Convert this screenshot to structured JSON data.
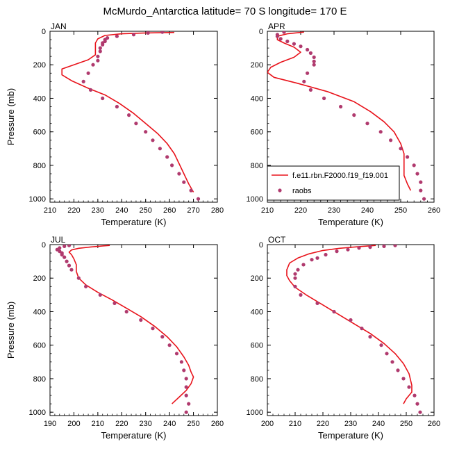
{
  "title": "McMurdo_Antarctica  latitude= 70 S longitude= 170 E",
  "colors": {
    "model": "#e8121a",
    "obs": "#b03a6e",
    "axis": "#000000"
  },
  "legend": {
    "model_label": "f.e11.rbn.F2000.f19_f19.001",
    "obs_label": "raobs"
  },
  "chart_data": [
    {
      "type": "scatter",
      "month": "JAN",
      "xlabel": "Temperature (K)",
      "ylabel": "Pressure (mb)",
      "xlim": [
        210,
        280
      ],
      "ylim": [
        0,
        1020
      ],
      "yreversed": true,
      "xticks": [
        210,
        220,
        230,
        240,
        250,
        260,
        270,
        280
      ],
      "yticks": [
        0,
        200,
        400,
        600,
        800,
        1000
      ],
      "series": [
        {
          "name": "f.e11.rbn.F2000.f19_f19.001",
          "kind": "line",
          "points": [
            [
              262,
              7
            ],
            [
              250,
              10
            ],
            [
              240,
              15
            ],
            [
              233,
              25
            ],
            [
              230,
              45
            ],
            [
              229,
              70
            ],
            [
              229,
              100
            ],
            [
              229,
              140
            ],
            [
              226,
              170
            ],
            [
              220,
              200
            ],
            [
              215,
              225
            ],
            [
              215,
              260
            ],
            [
              219,
              295
            ],
            [
              226,
              340
            ],
            [
              233,
              380
            ],
            [
              239,
              430
            ],
            [
              245,
              490
            ],
            [
              250,
              550
            ],
            [
              255,
              610
            ],
            [
              259,
              670
            ],
            [
              262,
              730
            ],
            [
              264,
              790
            ],
            [
              266,
              850
            ],
            [
              268,
              910
            ],
            [
              270,
              960
            ]
          ]
        },
        {
          "name": "raobs",
          "kind": "markers",
          "points": [
            [
              257,
              5
            ],
            [
              251,
              10
            ],
            [
              245,
              20
            ],
            [
              238,
              30
            ],
            [
              234,
              40
            ],
            [
              233,
              50
            ],
            [
              233,
              60
            ],
            [
              232,
              70
            ],
            [
              232,
              80
            ],
            [
              231,
              100
            ],
            [
              231,
              120
            ],
            [
              230,
              150
            ],
            [
              230,
              175
            ],
            [
              228,
              200
            ],
            [
              226,
              250
            ],
            [
              224,
              300
            ],
            [
              227,
              350
            ],
            [
              232,
              400
            ],
            [
              238,
              450
            ],
            [
              243,
              500
            ],
            [
              246,
              550
            ],
            [
              250,
              600
            ],
            [
              253,
              650
            ],
            [
              256,
              700
            ],
            [
              259,
              750
            ],
            [
              261,
              800
            ],
            [
              264,
              850
            ],
            [
              266,
              900
            ],
            [
              269,
              950
            ],
            [
              272,
              1000
            ]
          ]
        }
      ]
    },
    {
      "type": "scatter",
      "month": "APR",
      "xlabel": "Temperature (K)",
      "ylabel": "",
      "xlim": [
        210,
        260
      ],
      "ylim": [
        0,
        1020
      ],
      "yreversed": true,
      "xticks": [
        210,
        220,
        230,
        240,
        250,
        260
      ],
      "yticks": [
        0,
        200,
        400,
        600,
        800,
        1000
      ],
      "show_legend": true,
      "series": [
        {
          "name": "f.e11.rbn.F2000.f19_f19.001",
          "kind": "line",
          "points": [
            [
              221,
              5
            ],
            [
              216,
              15
            ],
            [
              213,
              30
            ],
            [
              213,
              50
            ],
            [
              215,
              70
            ],
            [
              218,
              95
            ],
            [
              220,
              125
            ],
            [
              218,
              155
            ],
            [
              214,
              185
            ],
            [
              211,
              215
            ],
            [
              210,
              245
            ],
            [
              212,
              275
            ],
            [
              219,
              310
            ],
            [
              228,
              360
            ],
            [
              236,
              420
            ],
            [
              241,
              480
            ],
            [
              245,
              540
            ],
            [
              248,
              600
            ],
            [
              250,
              670
            ],
            [
              251,
              730
            ],
            [
              251,
              800
            ],
            [
              251,
              860
            ],
            [
              252,
              910
            ],
            [
              253,
              950
            ]
          ]
        },
        {
          "name": "raobs",
          "kind": "markers",
          "points": [
            [
              215,
              5
            ],
            [
              213,
              20
            ],
            [
              213,
              30
            ],
            [
              214,
              45
            ],
            [
              216,
              60
            ],
            [
              218,
              75
            ],
            [
              220,
              90
            ],
            [
              222,
              110
            ],
            [
              223,
              130
            ],
            [
              224,
              155
            ],
            [
              224,
              180
            ],
            [
              224,
              200
            ],
            [
              222,
              250
            ],
            [
              221,
              300
            ],
            [
              223,
              350
            ],
            [
              227,
              400
            ],
            [
              232,
              450
            ],
            [
              236,
              500
            ],
            [
              240,
              550
            ],
            [
              244,
              600
            ],
            [
              247,
              650
            ],
            [
              250,
              700
            ],
            [
              252,
              750
            ],
            [
              254,
              800
            ],
            [
              255,
              850
            ],
            [
              256,
              900
            ],
            [
              256,
              950
            ],
            [
              257,
              1000
            ]
          ]
        }
      ]
    },
    {
      "type": "scatter",
      "month": "JUL",
      "xlabel": "Temperature (K)",
      "ylabel": "Pressure (mb)",
      "xlim": [
        190,
        260
      ],
      "ylim": [
        0,
        1020
      ],
      "yreversed": true,
      "xticks": [
        190,
        200,
        210,
        220,
        230,
        240,
        250,
        260
      ],
      "yticks": [
        0,
        200,
        400,
        600,
        800,
        1000
      ],
      "series": [
        {
          "name": "f.e11.rbn.F2000.f19_f19.001",
          "kind": "line",
          "points": [
            [
              215,
              5
            ],
            [
              212,
              8
            ],
            [
              207,
              14
            ],
            [
              202,
              22
            ],
            [
              199,
              32
            ],
            [
              198,
              45
            ],
            [
              199,
              60
            ],
            [
              200,
              85
            ],
            [
              201,
              120
            ],
            [
              201,
              160
            ],
            [
              202,
              200
            ],
            [
              205,
              240
            ],
            [
              210,
              285
            ],
            [
              216,
              330
            ],
            [
              222,
              380
            ],
            [
              228,
              430
            ],
            [
              234,
              490
            ],
            [
              239,
              550
            ],
            [
              243,
              610
            ],
            [
              246,
              670
            ],
            [
              248,
              720
            ],
            [
              249,
              760
            ],
            [
              250,
              790
            ],
            [
              249,
              830
            ],
            [
              247,
              870
            ],
            [
              244,
              910
            ],
            [
              241,
              950
            ]
          ]
        },
        {
          "name": "raobs",
          "kind": "markers",
          "points": [
            [
              198,
              5
            ],
            [
              196,
              10
            ],
            [
              194,
              20
            ],
            [
              193,
              30
            ],
            [
              194,
              40
            ],
            [
              195,
              50
            ],
            [
              195,
              60
            ],
            [
              196,
              75
            ],
            [
              197,
              100
            ],
            [
              198,
              125
            ],
            [
              199,
              150
            ],
            [
              202,
              200
            ],
            [
              205,
              250
            ],
            [
              211,
              300
            ],
            [
              217,
              350
            ],
            [
              222,
              400
            ],
            [
              228,
              450
            ],
            [
              233,
              500
            ],
            [
              237,
              550
            ],
            [
              240,
              600
            ],
            [
              243,
              650
            ],
            [
              245,
              700
            ],
            [
              246,
              750
            ],
            [
              247,
              800
            ],
            [
              247,
              850
            ],
            [
              247,
              900
            ],
            [
              248,
              950
            ],
            [
              247,
              1000
            ]
          ]
        }
      ]
    },
    {
      "type": "scatter",
      "month": "OCT",
      "xlabel": "Temperature (K)",
      "ylabel": "",
      "xlim": [
        200,
        260
      ],
      "ylim": [
        0,
        1020
      ],
      "yreversed": true,
      "xticks": [
        200,
        210,
        220,
        230,
        240,
        250,
        260
      ],
      "yticks": [
        0,
        200,
        400,
        600,
        800,
        1000
      ],
      "series": [
        {
          "name": "f.e11.rbn.F2000.f19_f19.001",
          "kind": "line",
          "points": [
            [
              239,
              5
            ],
            [
              233,
              12
            ],
            [
              226,
              22
            ],
            [
              220,
              35
            ],
            [
              215,
              55
            ],
            [
              211,
              80
            ],
            [
              208,
              110
            ],
            [
              207,
              150
            ],
            [
              207,
              185
            ],
            [
              208,
              215
            ],
            [
              210,
              255
            ],
            [
              214,
              300
            ],
            [
              219,
              350
            ],
            [
              225,
              410
            ],
            [
              231,
              470
            ],
            [
              237,
              530
            ],
            [
              242,
              590
            ],
            [
              246,
              650
            ],
            [
              249,
              710
            ],
            [
              251,
              770
            ],
            [
              252,
              840
            ],
            [
              252,
              880
            ],
            [
              250,
              920
            ],
            [
              249,
              950
            ]
          ]
        },
        {
          "name": "raobs",
          "kind": "markers",
          "points": [
            [
              246,
              5
            ],
            [
              242,
              10
            ],
            [
              237,
              15
            ],
            [
              233,
              20
            ],
            [
              229,
              30
            ],
            [
              225,
              40
            ],
            [
              221,
              60
            ],
            [
              218,
              80
            ],
            [
              216,
              90
            ],
            [
              213,
              120
            ],
            [
              211,
              150
            ],
            [
              210,
              175
            ],
            [
              210,
              200
            ],
            [
              210,
              250
            ],
            [
              212,
              300
            ],
            [
              218,
              350
            ],
            [
              224,
              400
            ],
            [
              230,
              450
            ],
            [
              234,
              500
            ],
            [
              237,
              550
            ],
            [
              241,
              600
            ],
            [
              243,
              650
            ],
            [
              245,
              700
            ],
            [
              247,
              750
            ],
            [
              249,
              800
            ],
            [
              251,
              850
            ],
            [
              253,
              900
            ],
            [
              254,
              950
            ],
            [
              255,
              1000
            ]
          ]
        }
      ]
    }
  ]
}
